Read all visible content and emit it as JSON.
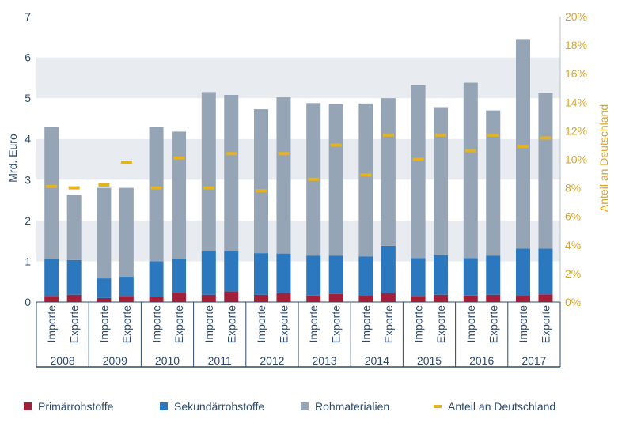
{
  "chart_data": {
    "type": "bar",
    "stacked": true,
    "years": [
      "2008",
      "2009",
      "2010",
      "2011",
      "2012",
      "2013",
      "2014",
      "2015",
      "2016",
      "2017"
    ],
    "subcategories": [
      "Importe",
      "Exporte"
    ],
    "ylabel": "Mrd. Euro",
    "y2label": "Anteil an Deutschland",
    "ylim": [
      0,
      7
    ],
    "yticks": [
      "0",
      "1",
      "2",
      "3",
      "4",
      "5",
      "6",
      "7"
    ],
    "y2lim": [
      0,
      20
    ],
    "y2ticks": [
      "0%",
      "2%",
      "4%",
      "6%",
      "8%",
      "10%",
      "12%",
      "14%",
      "16%",
      "18%",
      "20%"
    ],
    "series": [
      {
        "name": "Primärrohstoffe",
        "color": "#a3203a",
        "values": [
          0.15,
          0.18,
          0.1,
          0.15,
          0.13,
          0.23,
          0.18,
          0.26,
          0.18,
          0.22,
          0.16,
          0.2,
          0.17,
          0.22,
          0.15,
          0.18,
          0.16,
          0.18,
          0.17,
          0.19
        ]
      },
      {
        "name": "Sekundärrohstoffe",
        "color": "#2b78bf",
        "values": [
          0.9,
          0.85,
          0.48,
          0.47,
          0.87,
          0.82,
          1.07,
          0.99,
          1.02,
          0.97,
          0.98,
          0.94,
          0.95,
          1.16,
          0.93,
          0.97,
          0.92,
          0.96,
          1.14,
          1.12
        ]
      },
      {
        "name": "Rohmaterialien",
        "color": "#95a5b5",
        "values": [
          3.25,
          1.6,
          2.22,
          2.18,
          3.3,
          3.13,
          3.9,
          3.83,
          3.53,
          3.83,
          3.74,
          3.71,
          3.75,
          3.62,
          4.24,
          3.63,
          4.3,
          3.56,
          5.14,
          3.82
        ]
      },
      {
        "name": "Anteil an Deutschland",
        "color": "#e3b323",
        "kind": "marker",
        "values": [
          8.1,
          8.0,
          8.2,
          9.8,
          8.0,
          10.1,
          8.0,
          10.4,
          7.8,
          10.4,
          8.6,
          11.0,
          8.9,
          11.7,
          10.0,
          11.7,
          10.6,
          11.7,
          10.9,
          11.5
        ]
      }
    ],
    "legend_position": "bottom",
    "grid": false
  }
}
